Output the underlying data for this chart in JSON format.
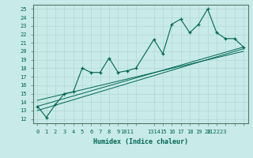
{
  "xlabel": "Humidex (Indice chaleur)",
  "bg_color": "#c8eae8",
  "grid_color": "#b0d8d4",
  "line_color": "#006655",
  "xlim": [
    -0.5,
    23.5
  ],
  "ylim": [
    11.5,
    25.5
  ],
  "yticks": [
    12,
    13,
    14,
    15,
    16,
    17,
    18,
    19,
    20,
    21,
    22,
    23,
    24,
    25
  ],
  "xtick_positions": [
    0,
    1,
    2,
    3,
    4,
    5,
    6,
    7,
    8,
    9,
    10,
    11,
    13,
    14,
    15,
    16,
    17,
    18,
    19,
    20,
    21,
    22,
    23
  ],
  "xtick_labels": [
    "0",
    "1",
    "2",
    "3",
    "4",
    "5",
    "6",
    "7",
    "8",
    "9",
    "1011",
    "",
    "1314",
    "15",
    "16",
    "17",
    "18",
    "19",
    "20",
    "212223",
    "",
    "",
    ""
  ],
  "data_x": [
    0,
    1,
    2,
    3,
    4,
    5,
    6,
    7,
    8,
    9,
    10,
    11,
    13,
    14,
    15,
    16,
    17,
    18,
    19,
    20,
    21,
    22,
    23
  ],
  "data_y": [
    13.5,
    12.2,
    13.7,
    15.0,
    15.2,
    18.0,
    17.5,
    17.5,
    19.2,
    17.5,
    17.7,
    18.0,
    21.4,
    19.7,
    23.2,
    23.8,
    22.2,
    23.2,
    25.0,
    22.2,
    21.5,
    21.5,
    20.5
  ],
  "reg_lines": [
    {
      "x": [
        0,
        23
      ],
      "y": [
        13.0,
        20.3
      ]
    },
    {
      "x": [
        0,
        23
      ],
      "y": [
        13.5,
        20.5
      ]
    },
    {
      "x": [
        0,
        23
      ],
      "y": [
        14.2,
        20.0
      ]
    }
  ]
}
